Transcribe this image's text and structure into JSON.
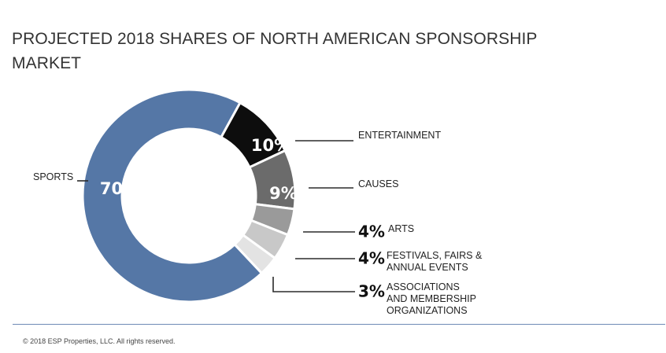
{
  "title": "PROJECTED 2018 SHARES OF NORTH AMERICAN SPONSORSHIP MARKET",
  "copyright": "© 2018 ESP Properties, LLC. All rights reserved.",
  "chart_data": {
    "type": "pie",
    "style": "donut",
    "title": "PROJECTED 2018 SHARES OF NORTH AMERICAN SPONSORSHIP MARKET",
    "categories": [
      "SPORTS",
      "ENTERTAINMENT",
      "CAUSES",
      "ARTS",
      "FESTIVALS, FAIRS & ANNUAL EVENTS",
      "ASSOCIATIONS AND MEMBERSHIP ORGANIZATIONS"
    ],
    "values": [
      70,
      10,
      9,
      4,
      4,
      3
    ],
    "value_labels": [
      "70%",
      "10%",
      "9%",
      "4%",
      "4%",
      "3%"
    ],
    "label_lines": [
      [
        "SPORTS"
      ],
      [
        "ENTERTAINMENT"
      ],
      [
        "CAUSES"
      ],
      [
        "ARTS"
      ],
      [
        "FESTIVALS, FAIRS &",
        "ANNUAL EVENTS"
      ],
      [
        "ASSOCIATIONS",
        "AND MEMBERSHIP",
        "ORGANIZATIONS"
      ]
    ],
    "colors": [
      "#5577a6",
      "#0d0d0d",
      "#6b6b6b",
      "#9a9a9a",
      "#c8c8c8",
      "#e3e3e3"
    ],
    "legend": "none"
  }
}
